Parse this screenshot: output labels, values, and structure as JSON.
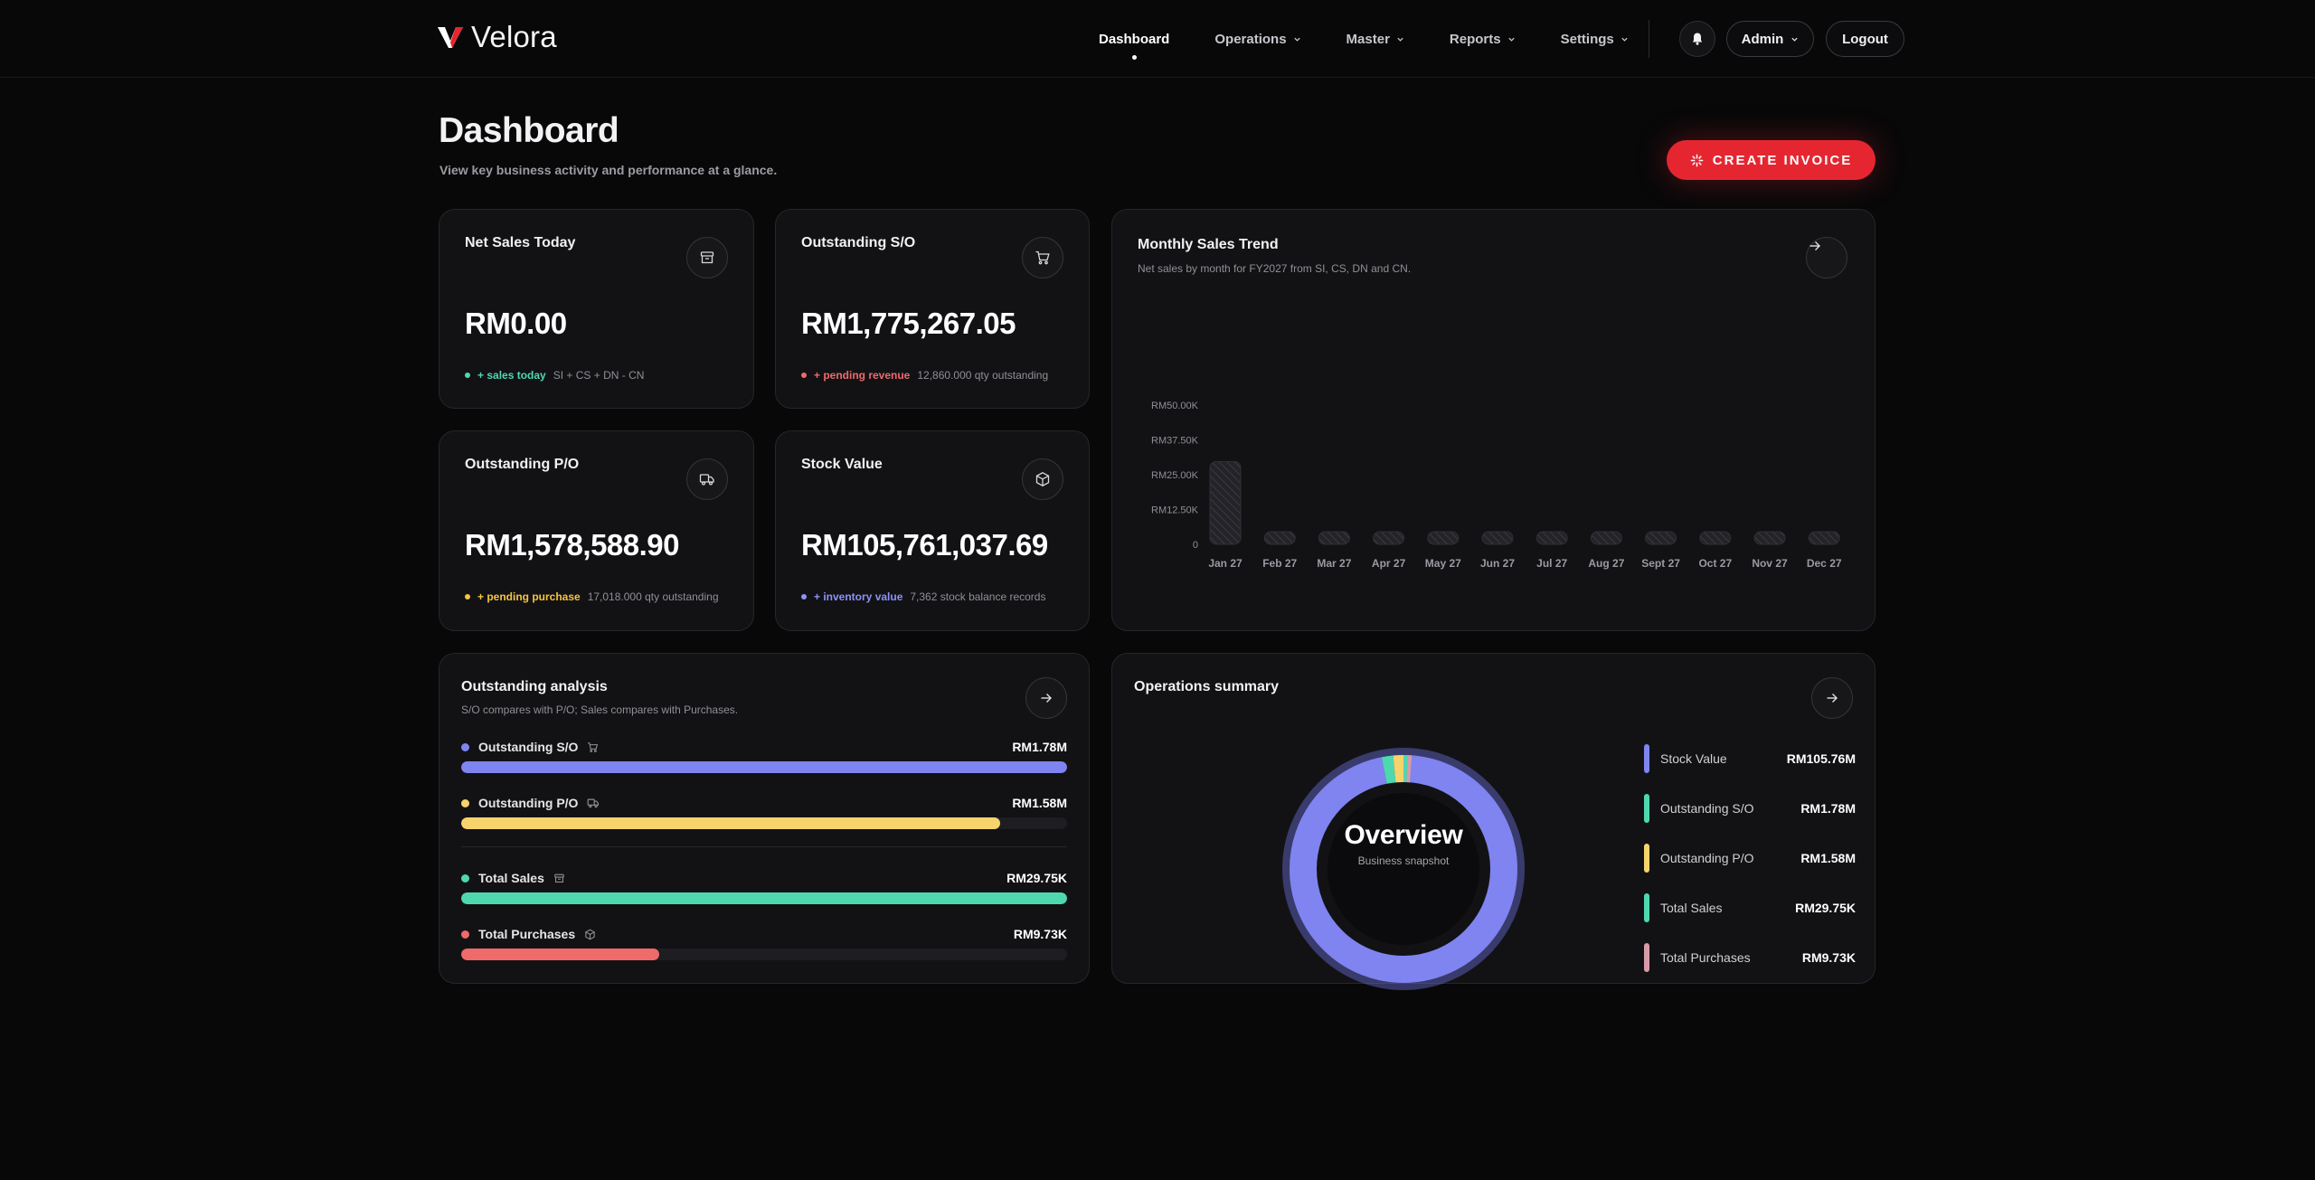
{
  "app": {
    "name": "Velora"
  },
  "nav": {
    "items": [
      {
        "label": "Dashboard",
        "active": true,
        "dropdown": false
      },
      {
        "label": "Operations",
        "active": false,
        "dropdown": true
      },
      {
        "label": "Master",
        "active": false,
        "dropdown": true
      },
      {
        "label": "Reports",
        "active": false,
        "dropdown": true
      },
      {
        "label": "Settings",
        "active": false,
        "dropdown": true
      }
    ],
    "user_label": "Admin",
    "logout_label": "Logout"
  },
  "header": {
    "title": "Dashboard",
    "subtitle": "View key business activity and performance at a glance.",
    "create_label": "CREATE INVOICE"
  },
  "kpis": [
    {
      "title": "Net Sales Today",
      "value": "RM0.00",
      "tag": "+ sales today",
      "note": "SI + CS + DN - CN",
      "color": "#4fd8b0",
      "icon": "archive-icon"
    },
    {
      "title": "Outstanding S/O",
      "value": "RM1,775,267.05",
      "tag": "+ pending revenue",
      "note": "12,860.000 qty outstanding",
      "color": "#ef6a6a",
      "icon": "cart-icon"
    },
    {
      "title": "Outstanding P/O",
      "value": "RM1,578,588.90",
      "tag": "+ pending purchase",
      "note": "17,018.000 qty outstanding",
      "color": "#f5c542",
      "icon": "truck-icon"
    },
    {
      "title": "Stock Value",
      "value": "RM105,761,037.69",
      "tag": "+ inventory value",
      "note": "7,362 stock balance records",
      "color": "#8c93f5",
      "icon": "box-icon"
    }
  ],
  "trend": {
    "title": "Monthly Sales Trend",
    "subtitle": "Net sales by month for FY2027 from SI, CS, DN and CN."
  },
  "chart_data": {
    "type": "bar",
    "title": "Monthly Sales Trend",
    "categories": [
      "Jan 27",
      "Feb 27",
      "Mar 27",
      "Apr 27",
      "May 27",
      "Jun 27",
      "Jul 27",
      "Aug 27",
      "Sept 27",
      "Oct 27",
      "Nov 27",
      "Dec 27"
    ],
    "values": [
      29750,
      0,
      0,
      0,
      0,
      0,
      0,
      0,
      0,
      0,
      0,
      0
    ],
    "yticks": [
      "0",
      "RM12.50K",
      "RM25.00K",
      "RM37.50K",
      "RM50.00K"
    ],
    "ylim": [
      0,
      50000
    ],
    "grid": false
  },
  "analysis": {
    "title": "Outstanding analysis",
    "subtitle": "S/O compares with P/O; Sales compares with Purchases.",
    "rows": [
      {
        "label": "Outstanding S/O",
        "value": "RM1.78M",
        "fraction": 1.0,
        "color": "#7f84f0",
        "icon": "cart-icon"
      },
      {
        "label": "Outstanding P/O",
        "value": "RM1.58M",
        "fraction": 0.889,
        "color": "#f7d36b",
        "icon": "truck-icon"
      },
      {
        "label": "Total Sales",
        "value": "RM29.75K",
        "fraction": 1.0,
        "color": "#4fd8b0",
        "icon": "archive-icon"
      },
      {
        "label": "Total Purchases",
        "value": "RM9.73K",
        "fraction": 0.327,
        "color": "#ef6a6a",
        "icon": "box-icon"
      }
    ]
  },
  "ops": {
    "title": "Operations summary",
    "center_title": "Overview",
    "center_sub": "Business snapshot",
    "items": [
      {
        "label": "Stock Value",
        "value": "RM105.76M",
        "amount": 105.76,
        "color": "#7f84f0"
      },
      {
        "label": "Outstanding S/O",
        "value": "RM1.78M",
        "amount": 1.78,
        "color": "#4fd8b0"
      },
      {
        "label": "Outstanding P/O",
        "value": "RM1.58M",
        "amount": 1.58,
        "color": "#f7d36b"
      },
      {
        "label": "Total Sales",
        "value": "RM29.75K",
        "amount": 0.02975,
        "color": "#4fd8b0"
      },
      {
        "label": "Total Purchases",
        "value": "RM9.73K",
        "amount": 0.00973,
        "color": "#d99aa8"
      }
    ]
  }
}
